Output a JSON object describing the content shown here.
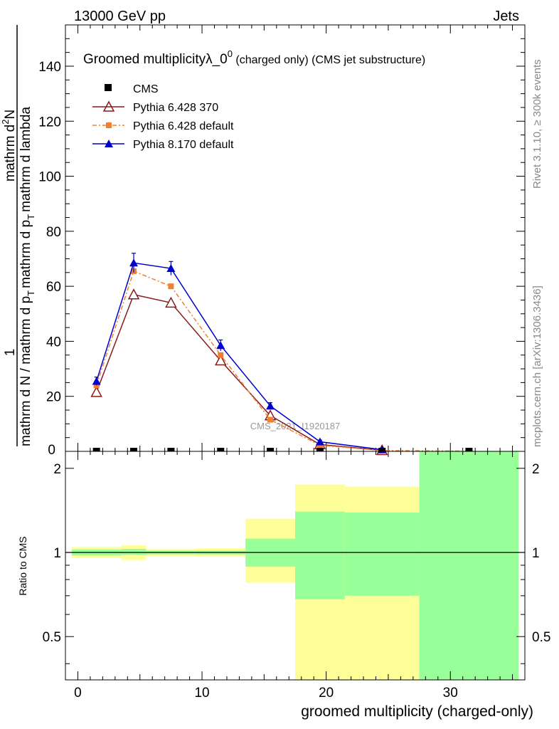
{
  "header": {
    "left": "13000 GeV pp",
    "right": "Jets"
  },
  "side": {
    "rivet": "Rivet 3.1.10, ≥ 300k events",
    "mcplots": "mcplots.cern.ch [arXiv:1306.3436]"
  },
  "watermark": "CMS_2021_I1920187",
  "colors": {
    "cms": "#000000",
    "p6_370": "#8b1a1a",
    "p6_default": "#f08030",
    "p8_default": "#0000cc",
    "band_inner": "#99ff99",
    "band_outer": "#ffff99"
  },
  "chart_data": [
    {
      "type": "line",
      "title": "Groomed multiplicityλ_0",
      "title_sup": "0",
      "title_suffix": " (charged only) (CMS jet substructure)",
      "ylabel_top": "1",
      "ylabel_mid": "mathrm d N / mathrm d p",
      "ylabel_mid_sub": "T",
      "ylabel_mid_rest": "mathrm d p",
      "ylabel_mid_sub2": "T",
      "ylabel_mid_rest2": "mathrm d lambda",
      "ylabel_num": "mathrm d",
      "ylabel_num_sup": "2",
      "ylabel_num_rest": "N",
      "xlim": [
        -1,
        36
      ],
      "ylim": [
        0,
        155
      ],
      "yticks": [
        20,
        40,
        60,
        80,
        100,
        120,
        140
      ],
      "ytick_labels": [
        "20",
        "40",
        "60",
        "80",
        "100",
        "120",
        "140"
      ],
      "ytick_zero": "0",
      "legend": [
        "CMS",
        "Pythia 6.428 370",
        "Pythia 6.428 default",
        "Pythia 8.170 default"
      ],
      "series": [
        {
          "name": "CMS",
          "x": [
            1.5,
            4.5,
            7.5,
            11.5,
            15.5,
            19.5,
            24.5,
            31.5
          ],
          "y": [
            0,
            0,
            0,
            0,
            0,
            0,
            0,
            0
          ]
        },
        {
          "name": "Pythia 6.428 370",
          "x": [
            1.5,
            4.5,
            7.5,
            11.5,
            15.5,
            19.5,
            24.5
          ],
          "y": [
            21.5,
            57,
            54,
            33,
            13,
            2.5,
            0.4
          ]
        },
        {
          "name": "Pythia 6.428 default",
          "x": [
            1.5,
            4.5,
            7.5,
            11.5,
            15.5,
            19.5,
            24.5,
            31.5
          ],
          "y": [
            24,
            65.5,
            60,
            35,
            11.5,
            2.2,
            0.3,
            0.1
          ]
        },
        {
          "name": "Pythia 8.170 default",
          "x": [
            1.5,
            4.5,
            7.5,
            11.5,
            15.5,
            19.5,
            24.5
          ],
          "y": [
            25.5,
            68.5,
            66.5,
            38.5,
            16.5,
            3.5,
            0.6
          ],
          "err": [
            1.5,
            3.5,
            2.5,
            2,
            1.2,
            0.6,
            0.3
          ]
        }
      ]
    },
    {
      "type": "area",
      "ylabel": "Ratio to CMS",
      "xlabel": "groomed multiplicity (charged-only)",
      "xlim": [
        -1,
        36
      ],
      "ylim": [
        0.35,
        2.3
      ],
      "xticks": [
        0,
        10,
        20,
        30
      ],
      "xtick_labels": [
        "0",
        "10",
        "20",
        "30"
      ],
      "yticks": [
        0.5,
        1,
        2
      ],
      "ytick_labels": [
        "0.5",
        "1",
        "2"
      ],
      "bins": [
        {
          "lo": -0.5,
          "hi": 3.5,
          "in_lo": 0.975,
          "in_hi": 1.025,
          "out_lo": 0.955,
          "out_hi": 1.045
        },
        {
          "lo": 3.5,
          "hi": 5.5,
          "in_lo": 0.98,
          "in_hi": 1.03,
          "out_lo": 0.94,
          "out_hi": 1.06
        },
        {
          "lo": 5.5,
          "hi": 9.5,
          "in_lo": 0.985,
          "in_hi": 1.015,
          "out_lo": 0.97,
          "out_hi": 1.03
        },
        {
          "lo": 9.5,
          "hi": 13.5,
          "in_lo": 0.985,
          "in_hi": 1.015,
          "out_lo": 0.965,
          "out_hi": 1.035
        },
        {
          "lo": 13.5,
          "hi": 17.5,
          "in_lo": 0.89,
          "in_hi": 1.12,
          "out_lo": 0.78,
          "out_hi": 1.32
        },
        {
          "lo": 17.5,
          "hi": 21.5,
          "in_lo": 0.68,
          "in_hi": 1.4,
          "out_lo": 0.35,
          "out_hi": 1.75
        },
        {
          "lo": 21.5,
          "hi": 27.5,
          "in_lo": 0.7,
          "in_hi": 1.39,
          "out_lo": 0.35,
          "out_hi": 1.72
        },
        {
          "lo": 27.5,
          "hi": 35.5,
          "in_lo": 0.35,
          "in_hi": 2.3,
          "out_lo": 0.35,
          "out_hi": 2.3
        }
      ]
    }
  ]
}
